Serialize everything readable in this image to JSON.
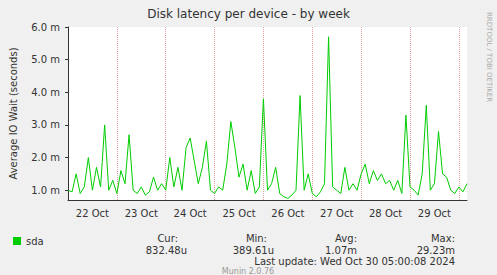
{
  "chart_data": {
    "type": "line",
    "title": "Disk latency per device - by week",
    "y_label": "Average IO Wait (seconds)",
    "categories": [
      null,
      null,
      null,
      null,
      null,
      null,
      "22 Oct",
      null,
      null,
      null,
      null,
      null,
      null,
      null,
      null,
      null,
      null,
      null,
      "23 Oct",
      null,
      null,
      null,
      null,
      null,
      null,
      null,
      null,
      null,
      null,
      null,
      "24 Oct",
      null,
      null,
      null,
      null,
      null,
      null,
      null,
      null,
      null,
      null,
      null,
      "25 Oct",
      null,
      null,
      null,
      null,
      null,
      null,
      null,
      null,
      null,
      null,
      null,
      "26 Oct",
      null,
      null,
      null,
      null,
      null,
      null,
      null,
      null,
      null,
      null,
      null,
      "27 Oct",
      null,
      null,
      null,
      null,
      null,
      null,
      null,
      null,
      null,
      null,
      null,
      "28 Oct",
      null,
      null,
      null,
      null,
      null,
      null,
      null,
      null,
      null,
      null,
      null,
      "29 Oct",
      null,
      null,
      null,
      null,
      null,
      null,
      null,
      null
    ],
    "series": [
      {
        "name": "sda",
        "color": "#00cc00",
        "values": [
          0.001,
          0.00095,
          0.0015,
          0.0009,
          0.0011,
          0.002,
          0.001,
          0.0017,
          0.0011,
          0.003,
          0.001,
          0.0013,
          0.0009,
          0.0016,
          0.0012,
          0.0027,
          0.001,
          0.0009,
          0.0011,
          0.00085,
          0.00095,
          0.0014,
          0.001,
          0.0012,
          0.001,
          0.002,
          0.0011,
          0.0017,
          0.001,
          0.0023,
          0.0026,
          0.0019,
          0.0012,
          0.0017,
          0.0025,
          0.001,
          0.0009,
          0.0011,
          0.001,
          0.0018,
          0.0031,
          0.0023,
          0.0014,
          0.0018,
          0.001,
          0.0016,
          0.0009,
          0.0011,
          0.0038,
          0.001,
          0.0012,
          0.0017,
          0.0009,
          0.0008,
          0.00075,
          0.00085,
          0.001,
          0.0039,
          0.001,
          0.0015,
          0.0009,
          0.0008,
          0.00095,
          0.0012,
          0.0057,
          0.0011,
          0.001,
          0.0009,
          0.0017,
          0.001,
          0.0012,
          0.001,
          0.0015,
          0.0018,
          0.0012,
          0.0016,
          0.0013,
          0.0015,
          0.0012,
          0.0013,
          0.001,
          0.0013,
          0.0009,
          0.0033,
          0.0011,
          0.001,
          0.00085,
          0.0015,
          0.0036,
          0.001,
          0.0012,
          0.0028,
          0.0015,
          0.0014,
          0.001,
          0.0009,
          0.0011,
          0.00095,
          0.0012
        ]
      }
    ],
    "ylim": [
      0.0007,
      0.006
    ],
    "yticks": [
      {
        "value": 0.001,
        "label": "1.0 m"
      },
      {
        "value": 0.002,
        "label": "2.0 m"
      },
      {
        "value": 0.003,
        "label": "3.0 m"
      },
      {
        "value": 0.004,
        "label": "4.0 m"
      },
      {
        "value": 0.005,
        "label": "5.0 m"
      },
      {
        "value": 0.006,
        "label": "6.0 m"
      }
    ],
    "grid": true,
    "legend": "lower left",
    "annotations": [
      "Cur:",
      "Min:",
      "Avg:",
      "Max:",
      "832.48u",
      "389.61u",
      "1.07m",
      "29.23m",
      "Last update: Wed Oct 30 05:00:08 2024",
      "Munin 2.0.76",
      "RRDTOOL / TOBI OETIKER"
    ]
  }
}
